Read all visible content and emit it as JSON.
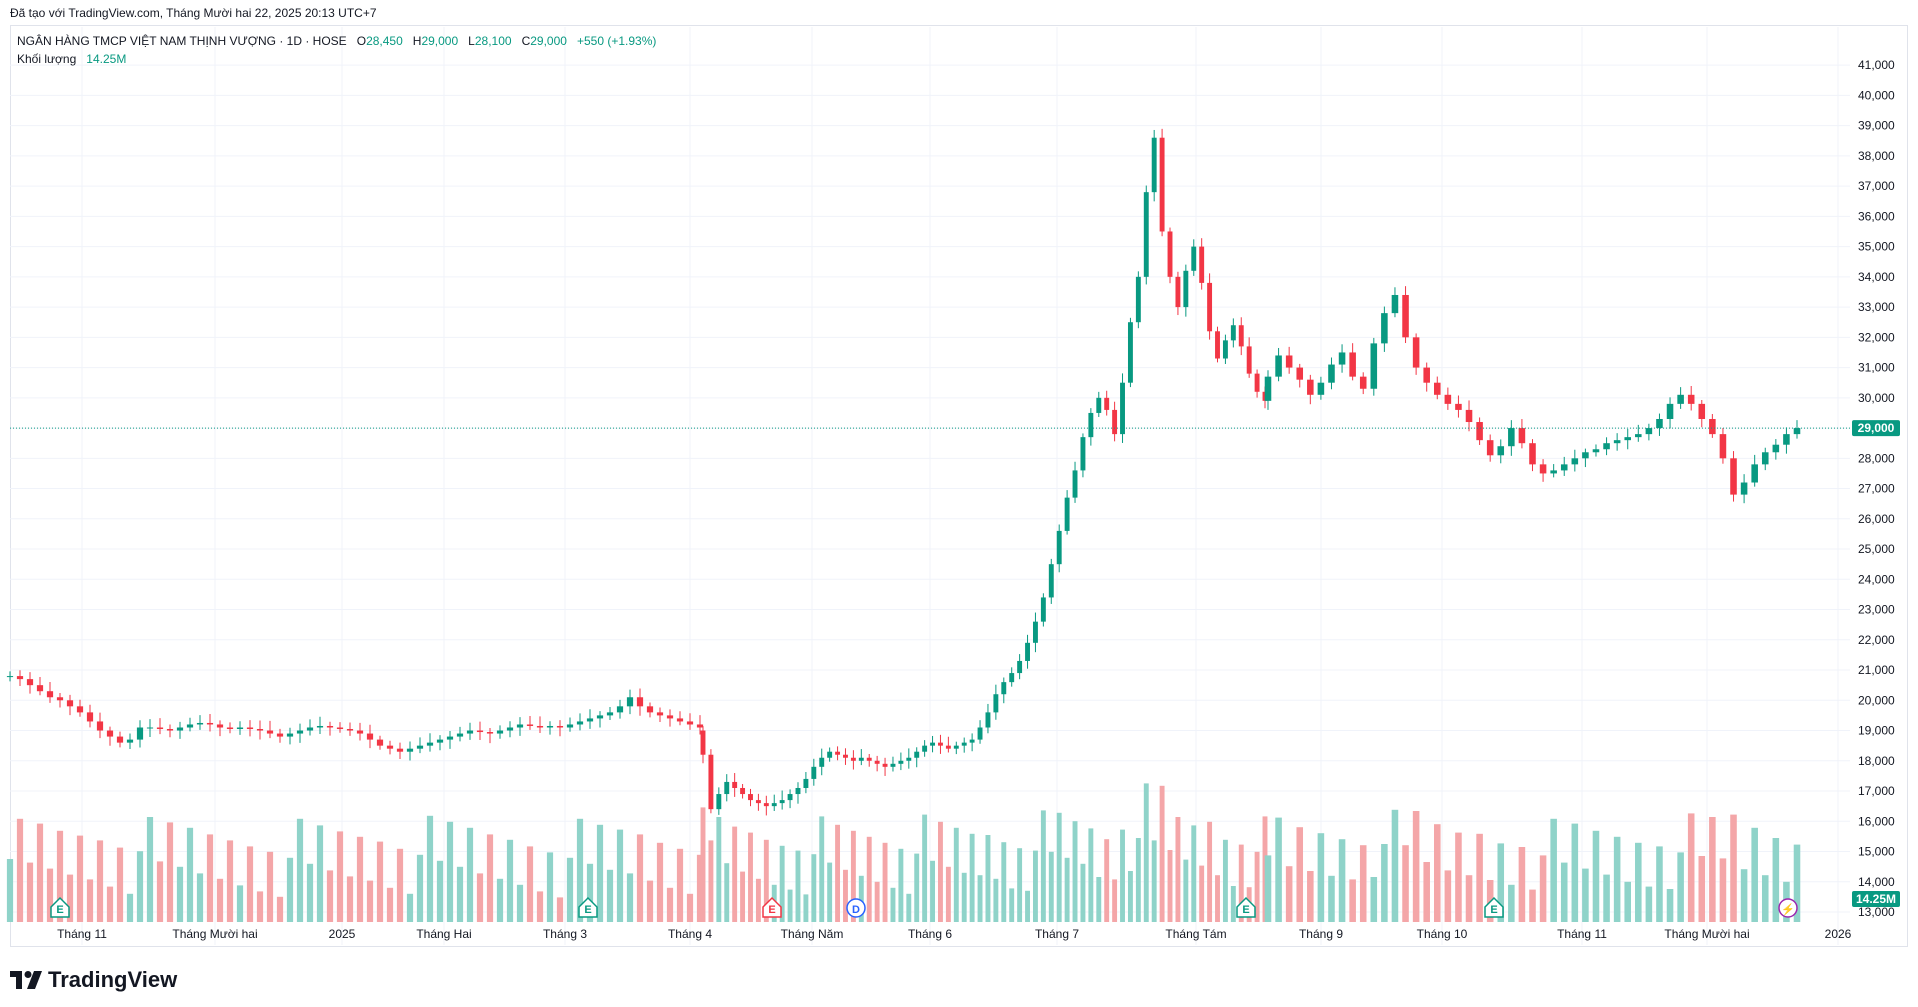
{
  "header": {
    "created_text": "Đã tạo với TradingView.com, Tháng Mười hai 22, 2025 20:13 UTC+7"
  },
  "legend": {
    "symbol": "NGÂN HÀNG TMCP VIỆT NAM THỊNH VƯỢNG · 1D · HOSE",
    "o_label": "O",
    "o_value": "28,450",
    "h_label": "H",
    "h_value": "29,000",
    "l_label": "L",
    "l_value": "28,100",
    "c_label": "C",
    "c_value": "29,000",
    "change": "+550 (+1.93%)",
    "volume_label": "Khối lượng",
    "volume_value": "14.25M"
  },
  "brand": {
    "name": "TradingView"
  },
  "colors": {
    "up": "#089981",
    "down": "#f23645",
    "vol_up": "#8fd3c9",
    "vol_down": "#f4a6a8",
    "grid": "#f0f3fa",
    "price_line": "#089981",
    "axis_text": "#131722"
  },
  "chart_data": {
    "type": "candlestick",
    "timeframe": "1D",
    "exchange": "HOSE",
    "ylim": [
      13000,
      41500
    ],
    "y_ticks": [
      13000,
      14000,
      15000,
      16000,
      17000,
      18000,
      19000,
      20000,
      21000,
      22000,
      23000,
      24000,
      25000,
      26000,
      27000,
      28000,
      29000,
      30000,
      31000,
      32000,
      33000,
      34000,
      35000,
      36000,
      37000,
      38000,
      39000,
      40000,
      41000
    ],
    "y_tick_labels": [
      "13,000",
      "14,000",
      "15,000",
      "16,000",
      "17,000",
      "18,000",
      "19,000",
      "20,000",
      "21,000",
      "22,000",
      "23,000",
      "24,000",
      "25,000",
      "26,000",
      "27,000",
      "28,000",
      "29,000",
      "30,000",
      "31,000",
      "32,000",
      "33,000",
      "34,000",
      "35,000",
      "36,000",
      "37,000",
      "38,000",
      "39,000",
      "40,000",
      "41,000"
    ],
    "x_labels": [
      "Tháng 11",
      "Tháng Mười hai",
      "2025",
      "Tháng Hai",
      "Tháng 3",
      "Tháng 4",
      "Tháng Năm",
      "Tháng 6",
      "Tháng 7",
      "Tháng Tám",
      "Tháng 9",
      "Tháng 10",
      "Tháng 11",
      "Tháng Mười hai",
      "2026"
    ],
    "last_price": 29000,
    "last_price_label": "29,000",
    "last_volume_label": "14.25M",
    "event_markers": [
      {
        "label": "E",
        "type": "earnings",
        "x_label_index": 0
      },
      {
        "label": "E",
        "type": "earnings",
        "x_label_index": 4
      },
      {
        "label": "E",
        "type": "earnings",
        "x_label_index": 6
      },
      {
        "label": "D",
        "type": "dividend",
        "x_label_index": 6
      },
      {
        "label": "E",
        "type": "earnings",
        "x_label_index": 9
      },
      {
        "label": "E",
        "type": "earnings",
        "x_label_index": 11
      },
      {
        "label": "⚡",
        "type": "flash",
        "x_label_index": 13
      }
    ],
    "close_anchors": [
      [
        20800,
        20700,
        20500,
        20300,
        20100,
        20000,
        19800,
        19600,
        19300,
        19000,
        18800,
        18600,
        18700,
        19100,
        19100,
        19050,
        19000,
        19100,
        19200,
        19250,
        19200,
        19100,
        19050,
        19100,
        19050,
        19000,
        18900,
        18800,
        18900,
        19000,
        19100,
        19150,
        19100,
        19050,
        19000,
        18900,
        18700,
        18500,
        18400,
        18300,
        18400,
        18500,
        18600,
        18700,
        18800,
        18900,
        19000,
        18950,
        18900,
        19000,
        19100,
        19200,
        19150,
        19100,
        19150,
        19100,
        19200,
        19300,
        19400,
        19500,
        19600,
        19800,
        20100,
        19800,
        19600,
        19500,
        19400,
        19300,
        19200,
        19100
      ],
      [
        18200,
        16400,
        16900,
        17300,
        17100,
        16900,
        16700,
        16600,
        16500,
        16600,
        16700,
        16900,
        17100,
        17400,
        17800,
        18100,
        18300,
        18200,
        18100,
        18000,
        18100,
        18000,
        17900,
        17800,
        17900,
        18000,
        18100,
        18300,
        18500,
        18600,
        18500,
        18400,
        18500,
        18600,
        18700,
        19100,
        19600,
        20200,
        20600,
        20900,
        21300,
        21900,
        22600,
        23400,
        24500,
        25600,
        26700,
        27600,
        28700,
        29500,
        30000,
        29600,
        28800,
        30500,
        32500,
        34000,
        36800,
        38600,
        35500,
        34000,
        33000,
        34200,
        35000,
        33800,
        32200,
        31300,
        31900,
        32400,
        31700,
        30800,
        30200,
        29900
      ],
      [
        30700,
        31400,
        31000,
        30600,
        30100,
        30500,
        31100,
        31500,
        30700,
        30300,
        31800,
        32800,
        33400,
        32000,
        31000,
        30500,
        30100,
        29800,
        29600,
        29200,
        28600,
        28100,
        28400,
        29000,
        28500,
        27800,
        27500,
        27600,
        27800,
        28000,
        28200,
        28300,
        28500,
        28600,
        28700,
        28800,
        29000,
        29300,
        29800,
        30100,
        29800,
        29300,
        28800,
        28000,
        26800,
        27200,
        27800,
        28200,
        28450,
        28800,
        29000
      ]
    ],
    "volume_range_m": [
      0,
      60
    ]
  }
}
